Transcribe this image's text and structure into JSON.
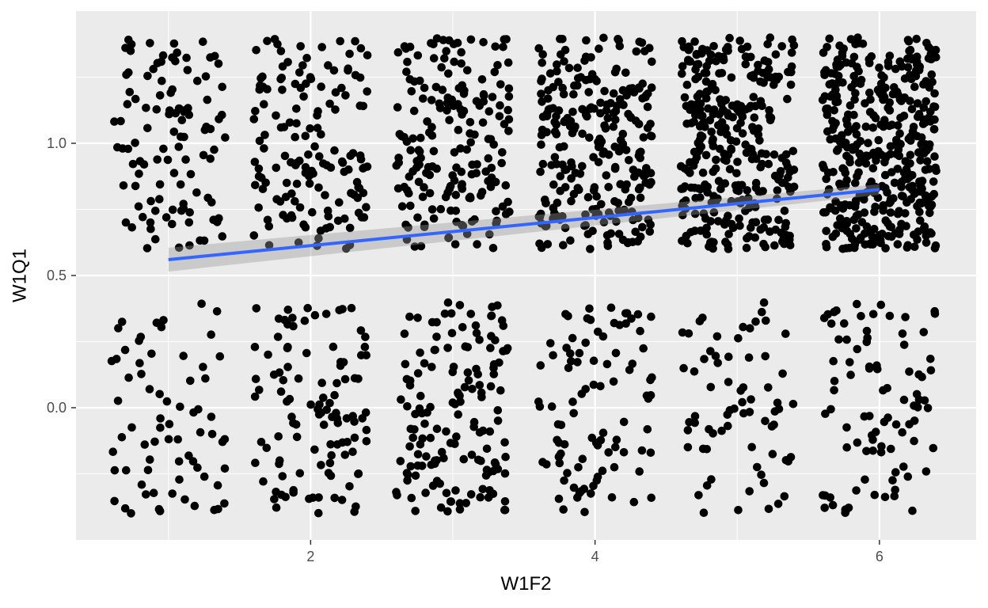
{
  "chart_data": {
    "type": "scatter",
    "subtype": "jittered scatter with linear fit and confidence band",
    "title": "",
    "xlabel": "W1F2",
    "ylabel": "W1Q1",
    "xlim": [
      0.35,
      6.68
    ],
    "ylim": [
      -0.5,
      1.5
    ],
    "x_ticks": [
      2,
      4,
      6
    ],
    "y_ticks": [
      0.0,
      0.5,
      1.0
    ],
    "x_tick_labels": [
      "2",
      "4",
      "6"
    ],
    "y_tick_labels": [
      "0.0",
      "0.5",
      "1.0"
    ],
    "grid": true,
    "legend": "none",
    "colors": {
      "panel": "#ebebeb",
      "grid": "#ffffff",
      "points": "#000000",
      "fit_line": "#3366ff",
      "band": "#999999"
    },
    "groups": [
      {
        "x": 1,
        "count_high": 110,
        "count_low": 70
      },
      {
        "x": 2,
        "count_high": 150,
        "count_low": 110
      },
      {
        "x": 3,
        "count_high": 190,
        "count_low": 150
      },
      {
        "x": 4,
        "count_high": 260,
        "count_low": 95
      },
      {
        "x": 5,
        "count_high": 330,
        "count_low": 70
      },
      {
        "x": 6,
        "count_high": 420,
        "count_low": 90
      }
    ],
    "y_values": [
      0,
      1
    ],
    "jitter": {
      "x": 0.4,
      "y": 0.4
    },
    "fit": {
      "method": "lm",
      "x": [
        1,
        6
      ],
      "y": [
        0.56,
        0.825
      ],
      "band_lower": [
        0.515,
        0.805
      ],
      "band_upper": [
        0.605,
        0.845
      ]
    }
  }
}
